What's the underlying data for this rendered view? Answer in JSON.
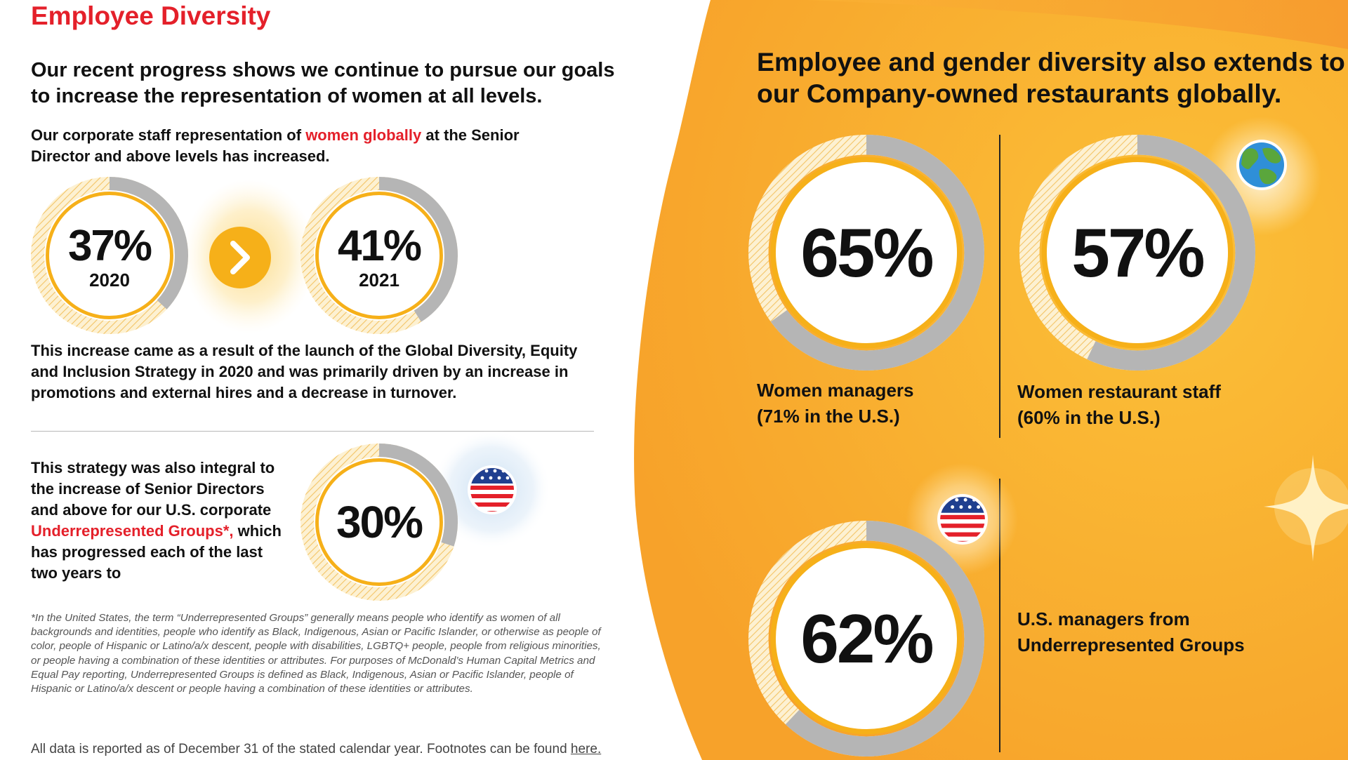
{
  "left": {
    "title": "Employee Diversity",
    "lead": "Our recent progress shows we continue to pursue our goals to increase the representation of women at all levels.",
    "p1": {
      "before": "Our corporate staff representation of ",
      "highlight": "women globally",
      "after": " at the Senior Director and above levels has increased."
    },
    "ring_2020": {
      "value": "37%",
      "year": "2020",
      "fill_fraction": 0.37
    },
    "arrow": {
      "icon": "chevron-right-icon"
    },
    "ring_2021": {
      "value": "41%",
      "year": "2021",
      "fill_fraction": 0.41
    },
    "p2": "This increase came as a result of the launch of the Global Diversity, Equity and Inclusion Strategy in 2020 and was primarily driven by an increase in promotions and external hires and a decrease in turnover.",
    "p3": {
      "before": "This strategy was also integral to the increase of Senior Directors and above for our U.S. corporate ",
      "highlight": "Underrepresented Groups*,",
      "after": " which has progressed each of the last two years to"
    },
    "ring_urg": {
      "value": "30%",
      "fill_fraction": 0.3,
      "icon": "us-flag-icon"
    },
    "footnote": "*In the United States, the term “Underrepresented Groups” generally means people who identify as women of all backgrounds and identities, people who identify as Black, Indigenous, Asian or Pacific Islander, or otherwise as people of color, people of Hispanic or Latino/a/x descent, people with disabilities, LGBTQ+ people, people from religious minorities, or people having a combination of these identities or attributes. For purposes of McDonald’s Human Capital Metrics and Equal Pay reporting, Underrepresented Groups is defined as Black, Indigenous, Asian or Pacific Islander, people of Hispanic or Latino/a/x descent or people having a combination of these identities or attributes.",
    "datanote": "All data is reported as of December 31 of the stated calendar year. Footnotes can be found ",
    "datanote_link": "here."
  },
  "right": {
    "heading": "Employee and gender diversity also extends to our Company-owned restaurants globally.",
    "women_managers": {
      "value": "65%",
      "fill_fraction": 0.65,
      "label_line1": "Women managers",
      "label_line2": "(71% in the U.S.)"
    },
    "women_staff": {
      "value": "57%",
      "fill_fraction": 0.57,
      "label_line1": "Women restaurant staff",
      "label_line2": "(60% in the U.S.)",
      "icon": "globe-icon"
    },
    "urg_managers": {
      "value": "62%",
      "fill_fraction": 0.62,
      "label_line1": "U.S. managers from",
      "label_line2": "Underrepresented Groups",
      "icon": "us-flag-icon"
    },
    "decoration_icon": "sparkle-icon"
  },
  "colors": {
    "accent_red": "#e4202a",
    "ring_yellow": "#f6b019",
    "ring_gray": "#b5b5b5",
    "panel_orange": "#f9ab2b",
    "panel_orange_light": "#fbc340"
  }
}
